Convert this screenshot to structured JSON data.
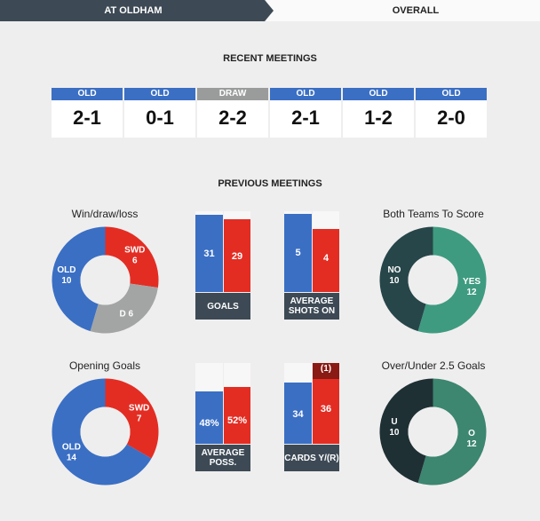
{
  "tabs": {
    "active": "AT OLDHAM",
    "inactive": "OVERALL"
  },
  "recent_meetings": {
    "title": "RECENT MEETINGS",
    "matches": [
      {
        "result": "OLD",
        "score": "2-1",
        "color": "#3a6fc4"
      },
      {
        "result": "OLD",
        "score": "0-1",
        "color": "#3a6fc4"
      },
      {
        "result": "DRAW",
        "score": "2-2",
        "color": "#9a9c9b"
      },
      {
        "result": "OLD",
        "score": "2-1",
        "color": "#3a6fc4"
      },
      {
        "result": "OLD",
        "score": "1-2",
        "color": "#3a6fc4"
      },
      {
        "result": "OLD",
        "score": "2-0",
        "color": "#3a6fc4"
      }
    ]
  },
  "previous_meetings": {
    "title": "PREVIOUS MEETINGS",
    "win_draw_loss": {
      "title": "Win/draw/loss",
      "slices": [
        {
          "label": "SWD",
          "value": 6,
          "color": "#e32d23"
        },
        {
          "label": "D",
          "value": 6,
          "color": "#a3a5a4"
        },
        {
          "label": "OLD",
          "value": 10,
          "color": "#3a6fc4"
        }
      ]
    },
    "goals": {
      "label": "GOALS",
      "home": 31,
      "away": 29
    },
    "shots_on": {
      "label": "AVERAGE SHOTS ON",
      "home": 5,
      "away": 4
    },
    "btts": {
      "title": "Both Teams To Score",
      "slices": [
        {
          "label": "YES",
          "value": 12,
          "color": "#3e9b80"
        },
        {
          "label": "NO",
          "value": 10,
          "color": "#27464a"
        }
      ]
    },
    "opening_goals": {
      "title": "Opening Goals",
      "slices": [
        {
          "label": "SWD",
          "value": 7,
          "color": "#e32d23"
        },
        {
          "label": "OLD",
          "value": 14,
          "color": "#3a6fc4"
        }
      ]
    },
    "possession": {
      "label": "AVERAGE POSS.",
      "home": "48%",
      "away": "52%",
      "home_value": 48,
      "away_value": 52
    },
    "cards": {
      "label": "CARDS Y/(R)",
      "home": 34,
      "away": 36,
      "away_red": "(1)",
      "away_red_value": 1
    },
    "over_under": {
      "title": "Over/Under 2.5 Goals",
      "slices": [
        {
          "label": "O",
          "value": 12,
          "color": "#3d8670"
        },
        {
          "label": "U",
          "value": 10,
          "color": "#1f3035"
        }
      ]
    }
  },
  "colors": {
    "home": "#3a6fc4",
    "away": "#e32d23",
    "panel": "#3d4a55",
    "red_card": "#8a1a14",
    "donut_hole": "#eeeeee"
  }
}
